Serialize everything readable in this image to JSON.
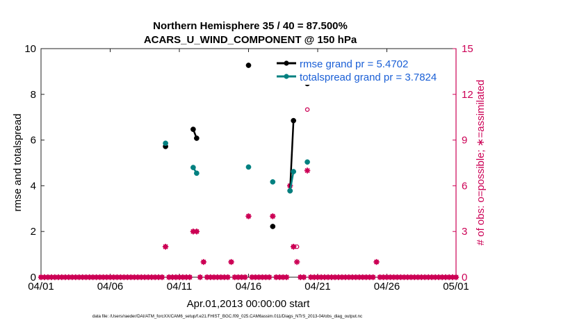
{
  "chart_data": {
    "type": "line",
    "title_line1": "Northern Hemisphere 35 / 40 = 87.500%",
    "title_line2": "ACARS_U_WIND_COMPONENT @ 150 hPa",
    "xlabel": "Apr.01,2013 00:00:00 start",
    "ylabel_left": "rmse and totalspread",
    "ylabel_right": "# of obs: o=possible; ∗=assimilated",
    "footer": "data file: /Users/raeder/DAI/ATM_forcXX/CAM6_setup/f.e21.FHIST_BGC.f09_025.CAM6assim.011/Diags_NTrS_2013-04/obs_diag_output.nc",
    "xlim": [
      0,
      30
    ],
    "x_ticks": [
      {
        "x": 0,
        "label": "04/01"
      },
      {
        "x": 5,
        "label": "04/06"
      },
      {
        "x": 10,
        "label": "04/11"
      },
      {
        "x": 15,
        "label": "04/16"
      },
      {
        "x": 20,
        "label": "04/21"
      },
      {
        "x": 25,
        "label": "04/26"
      },
      {
        "x": 30,
        "label": "05/01"
      }
    ],
    "ylim_left": [
      0,
      10
    ],
    "y_ticks_left": [
      "0",
      "2",
      "4",
      "6",
      "8",
      "10"
    ],
    "ylim_right": [
      0,
      15
    ],
    "y_ticks_right": [
      "0",
      "3",
      "6",
      "9",
      "12",
      "15"
    ],
    "legend": [
      {
        "label": "rmse grand pr = 5.4702",
        "color": "#000000"
      },
      {
        "label": "totalspread grand pr = 3.7824",
        "color": "#008080"
      }
    ],
    "series": [
      {
        "name": "rmse",
        "color": "#000000",
        "points": [
          [
            9.0,
            5.72
          ],
          [
            11.0,
            6.47
          ],
          [
            11.25,
            6.08
          ],
          [
            15.0,
            9.27
          ],
          [
            16.75,
            2.22
          ],
          [
            18.0,
            3.78
          ],
          [
            18.25,
            6.85
          ],
          [
            19.25,
            8.47
          ]
        ]
      },
      {
        "name": "totalspread",
        "color": "#008080",
        "points": [
          [
            9.0,
            5.86
          ],
          [
            11.0,
            4.8
          ],
          [
            11.25,
            4.55
          ],
          [
            15.0,
            4.82
          ],
          [
            16.75,
            4.17
          ],
          [
            18.0,
            3.78
          ],
          [
            18.25,
            4.62
          ],
          [
            19.25,
            5.04
          ]
        ]
      }
    ],
    "obs_color": "#cc0055",
    "obs_possible": [
      [
        9.0,
        2
      ],
      [
        11.0,
        3
      ],
      [
        11.25,
        3
      ],
      [
        11.75,
        1
      ],
      [
        13.75,
        1
      ],
      [
        15.0,
        4
      ],
      [
        16.75,
        4
      ],
      [
        18.0,
        6
      ],
      [
        18.25,
        2
      ],
      [
        18.5,
        2
      ],
      [
        19.25,
        11
      ],
      [
        24.25,
        1
      ]
    ],
    "obs_assimilated": [
      [
        9.0,
        2
      ],
      [
        11.0,
        3
      ],
      [
        11.25,
        3
      ],
      [
        11.75,
        1
      ],
      [
        13.75,
        1
      ],
      [
        15.0,
        4
      ],
      [
        16.75,
        4
      ],
      [
        18.0,
        6
      ],
      [
        18.25,
        2
      ],
      [
        18.5,
        1
      ],
      [
        19.25,
        7
      ],
      [
        24.25,
        1
      ]
    ],
    "obs_zero_step": 0.25
  }
}
